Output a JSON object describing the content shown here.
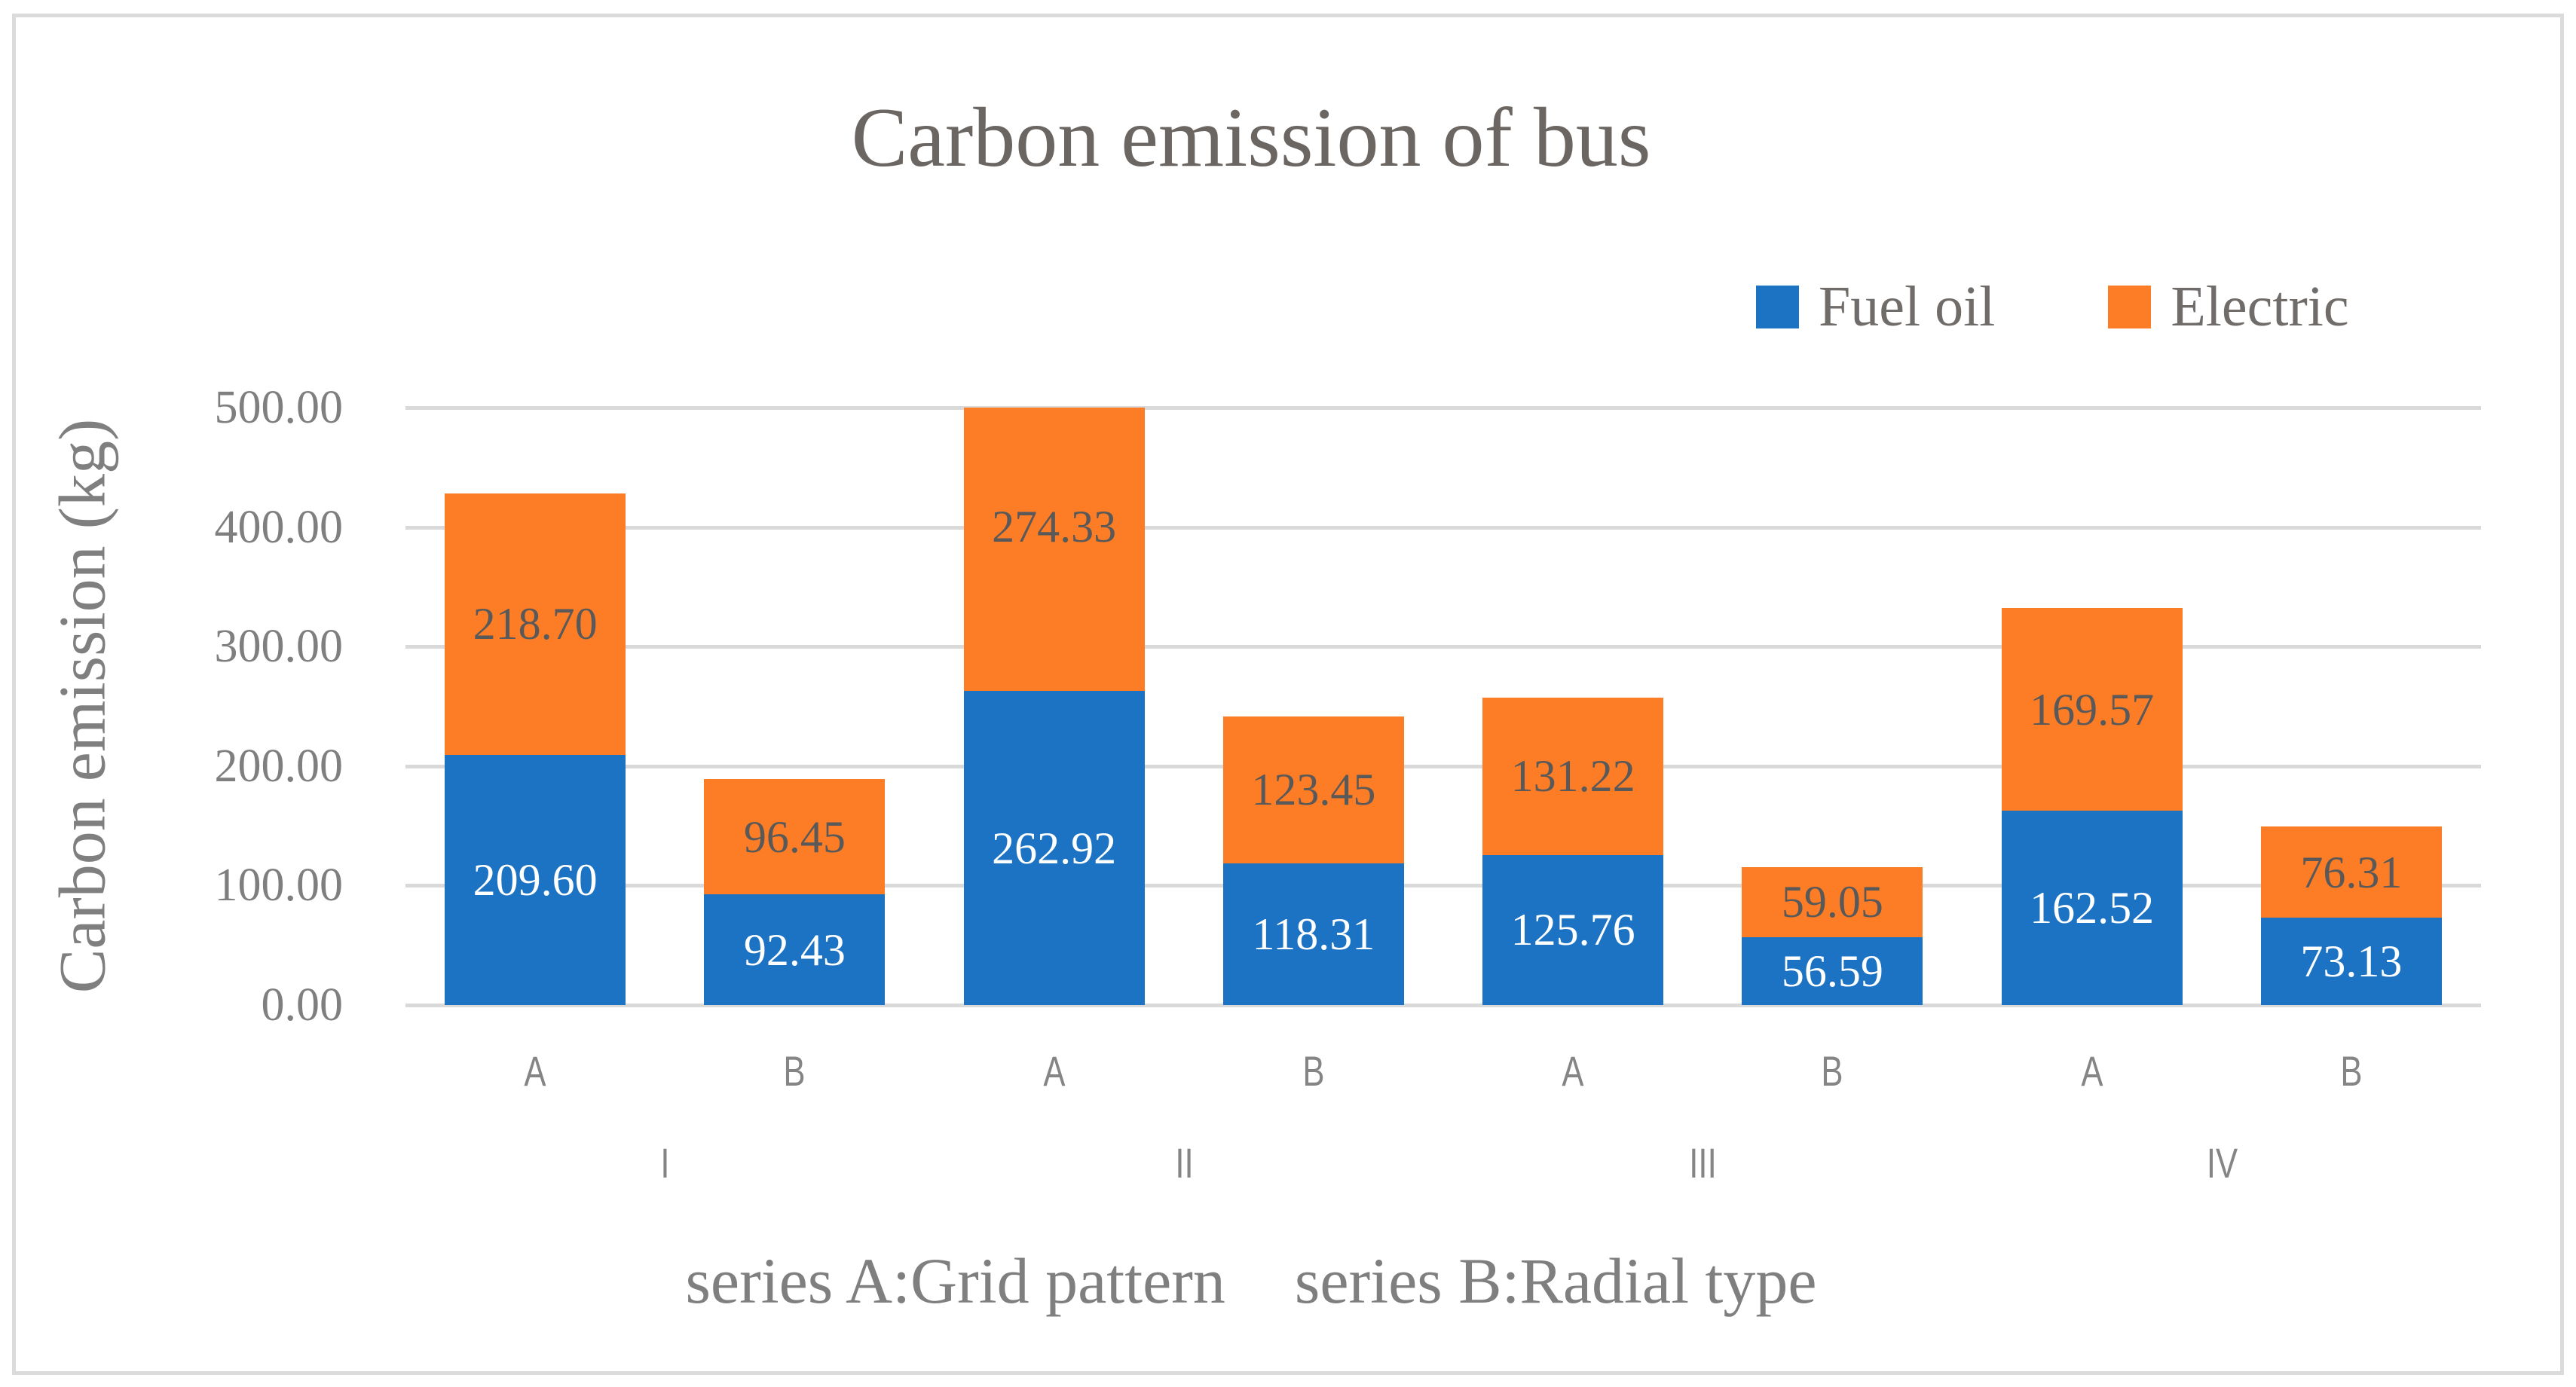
{
  "chart_data": {
    "type": "bar",
    "stacked": true,
    "title": "Carbon emission of bus",
    "ylabel": "Carbon emission (kg)",
    "xlabel_parts": [
      "series A:Grid pattern",
      "series B:Radial type"
    ],
    "ylim": [
      0,
      500
    ],
    "ytick_step": 100,
    "ytick_labels": [
      "0.00",
      "100.00",
      "200.00",
      "300.00",
      "400.00",
      "500.00"
    ],
    "groups": [
      "I",
      "II",
      "III",
      "IV"
    ],
    "bar_labels": [
      "A",
      "B",
      "A",
      "B",
      "A",
      "B",
      "A",
      "B"
    ],
    "legend_position": "top-right",
    "grid": true,
    "series": [
      {
        "name": "Fuel oil",
        "color": "#1C73C4",
        "label_color": "#FFFFFF",
        "values": [
          209.6,
          92.43,
          262.92,
          118.31,
          125.76,
          56.59,
          162.52,
          73.13
        ]
      },
      {
        "name": "Electric",
        "color": "#FC7D26",
        "label_color": "#595959",
        "values": [
          218.7,
          96.45,
          274.33,
          123.45,
          131.22,
          59.05,
          169.57,
          76.31
        ]
      }
    ],
    "colors": {
      "gridline": "#D9D9D9",
      "axis_text": "#7F7F7F",
      "title_text": "#6B6662",
      "frame_border": "#DBDBDB"
    }
  }
}
